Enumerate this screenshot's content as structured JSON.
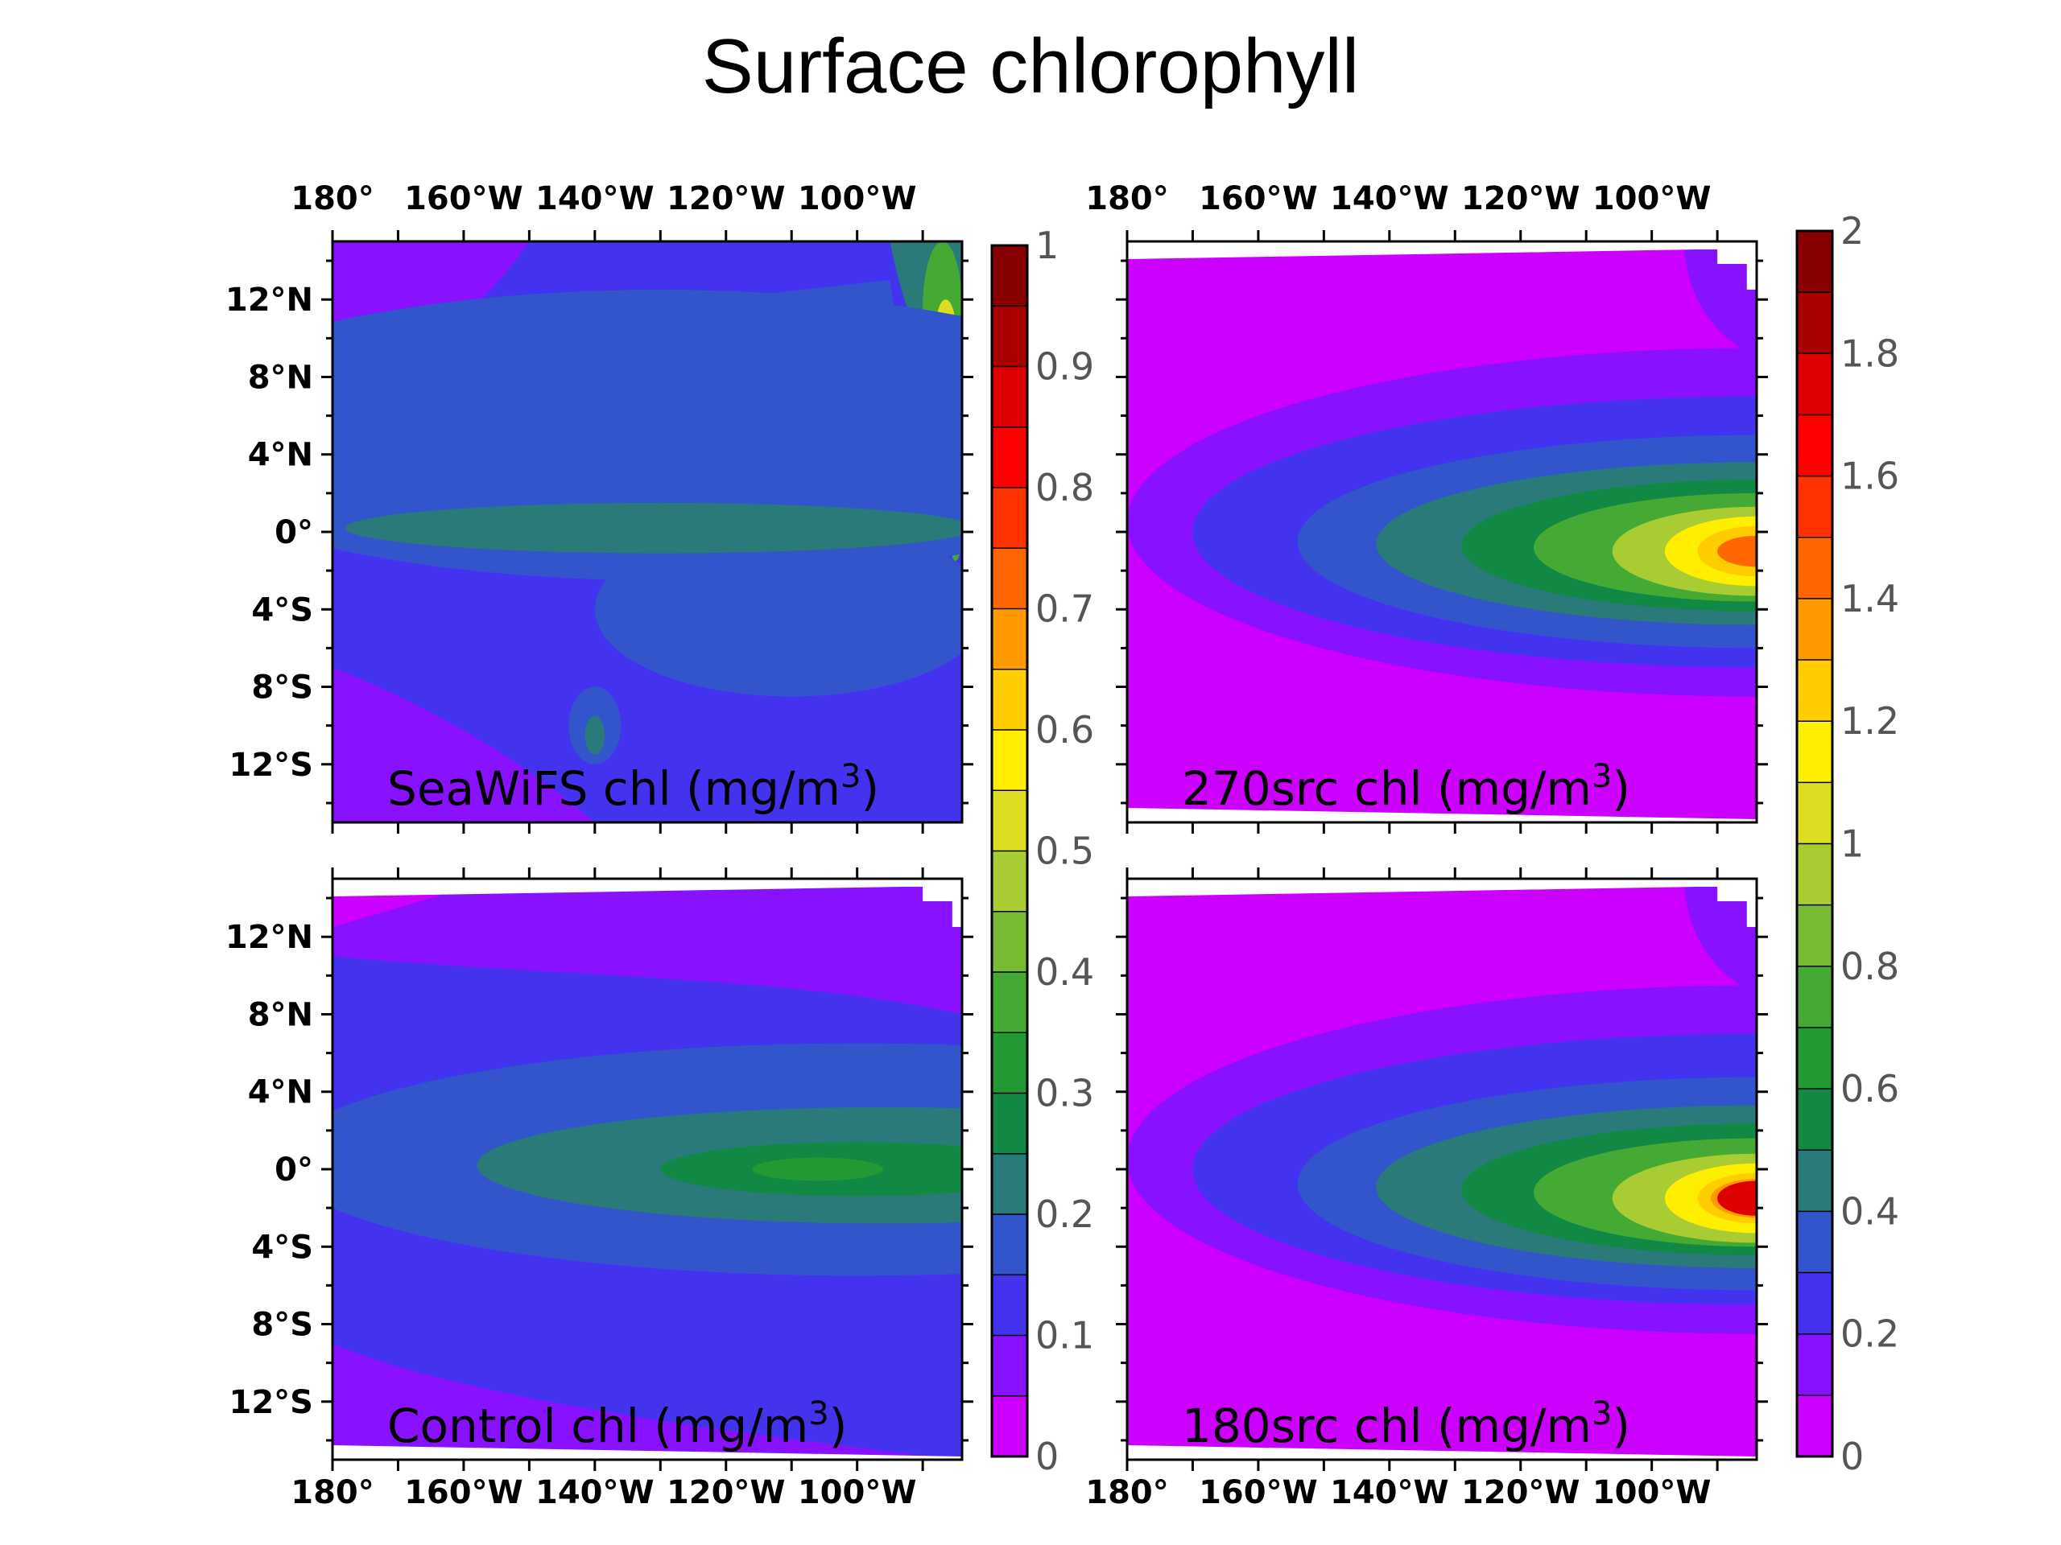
{
  "title": "Surface chlorophyll",
  "chart_data": [
    {
      "type": "heatmap",
      "panel_label": "SeaWiFS chl (mg/m",
      "panel_label_sup": "3",
      "panel_label_close": ")",
      "x_tick_labels": [
        "180°",
        "160°W",
        "140°W",
        "120°W",
        "100°W"
      ],
      "y_tick_labels": [
        "12°N",
        "8°N",
        "4°N",
        "0°",
        "4°S",
        "8°S",
        "12°S"
      ],
      "colorbar": "left",
      "features": [
        {
          "name": "background",
          "level": 0.12
        },
        {
          "name": "equatorial tongue",
          "level": 0.25,
          "lon": [
            -170,
            -85
          ],
          "lat": [
            -2,
            2
          ]
        },
        {
          "name": "north band",
          "level": 0.25,
          "lon": [
            -150,
            -95
          ],
          "lat": [
            5,
            9
          ]
        },
        {
          "name": "coastal upwelling north",
          "level": 0.7,
          "lon": [
            -92,
            -85
          ],
          "lat": [
            9,
            14
          ]
        },
        {
          "name": "equatorial coast spot",
          "level": 0.9,
          "lon": [
            -87,
            -85
          ],
          "lat": [
            -1,
            1
          ]
        }
      ]
    },
    {
      "type": "heatmap",
      "panel_label": "270src chl (mg/m",
      "panel_label_sup": "3",
      "panel_label_close": ")",
      "x_tick_labels": [
        "180°",
        "160°W",
        "140°W",
        "120°W",
        "100°W"
      ],
      "y_tick_labels": [],
      "colorbar": "right",
      "features": [
        {
          "name": "background",
          "level": 0.0
        },
        {
          "name": "equatorial tongue peak",
          "level": 1.6,
          "lon": [
            -100,
            -85
          ],
          "lat": [
            -2,
            1
          ]
        }
      ]
    },
    {
      "type": "heatmap",
      "panel_label": "Control chl (mg/m",
      "panel_label_sup": "3",
      "panel_label_close": ")",
      "x_tick_labels": [
        "180°",
        "160°W",
        "140°W",
        "120°W",
        "100°W"
      ],
      "y_tick_labels": [
        "12°N",
        "8°N",
        "4°N",
        "0°",
        "4°S",
        "8°S",
        "12°S"
      ],
      "colorbar": "left",
      "features": [
        {
          "name": "background",
          "level": 0.12
        },
        {
          "name": "equatorial tongue peak",
          "level": 0.4,
          "lon": [
            -115,
            -85
          ],
          "lat": [
            -2,
            2
          ]
        }
      ]
    },
    {
      "type": "heatmap",
      "panel_label": "180src chl (mg/m",
      "panel_label_sup": "3",
      "panel_label_close": ")",
      "x_tick_labels": [
        "180°",
        "160°W",
        "140°W",
        "120°W",
        "100°W"
      ],
      "y_tick_labels": [],
      "colorbar": "right",
      "features": [
        {
          "name": "background",
          "level": 0.0
        },
        {
          "name": "equatorial tongue peak",
          "level": 1.9,
          "lon": [
            -100,
            -85
          ],
          "lat": [
            -3,
            0
          ]
        }
      ]
    }
  ],
  "colorbars": [
    {
      "name": "left",
      "min": 0,
      "max": 1,
      "step": 0.05,
      "labels": [
        "1",
        "0.9",
        "0.8",
        "0.7",
        "0.6",
        "0.5",
        "0.4",
        "0.3",
        "0.2",
        "0.1",
        "0"
      ]
    },
    {
      "name": "right",
      "min": 0,
      "max": 2,
      "step": 0.1,
      "labels": [
        "2",
        "1.8",
        "1.6",
        "1.4",
        "1.2",
        "1",
        "0.8",
        "0.6",
        "0.4",
        "0.2",
        "0"
      ]
    }
  ],
  "colors": [
    "#cc00ff",
    "#8811ff",
    "#4433ee",
    "#3355cc",
    "#2a7a7a",
    "#118844",
    "#229933",
    "#44aa33",
    "#77bb33",
    "#aacc33",
    "#dddd22",
    "#ffee00",
    "#ffcc00",
    "#ff9900",
    "#ff6600",
    "#ff3300",
    "#ff0000",
    "#dd0000",
    "#aa0000",
    "#880000"
  ]
}
